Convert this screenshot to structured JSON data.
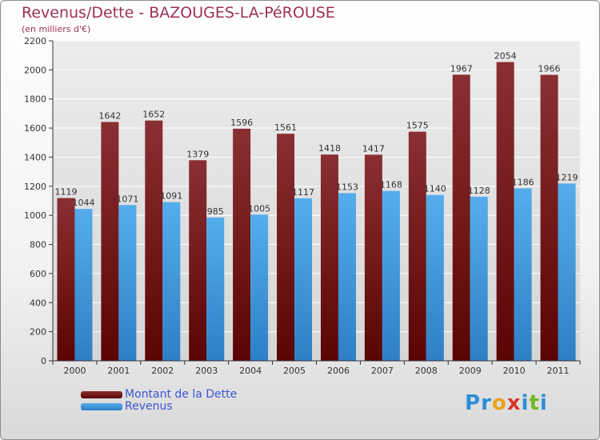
{
  "title": "Revenus/Dette - BAZOUGES-LA-PéROUSE",
  "subtitle": "(en milliers d'€)",
  "logo": [
    "P",
    "r",
    "o",
    "x",
    "i",
    "t",
    "i"
  ],
  "colors": {
    "dette": "#7b1818",
    "revenus": "#3d9ee6",
    "title": "#9c2f56",
    "legend_text": "#3a55d8",
    "logo": [
      "#2e8fd6",
      "#2e8fd6",
      "#e8a317",
      "#d8342a",
      "#2e8fd6",
      "#72b826",
      "#2e8fd6"
    ]
  },
  "legend": [
    {
      "label": "Montant de la Dette"
    },
    {
      "label": "Revenus"
    }
  ],
  "chart_data": {
    "type": "bar",
    "title": "Revenus/Dette - BAZOUGES-LA-PéROUSE",
    "subtitle": "(en milliers d'€)",
    "categories": [
      "2000",
      "2001",
      "2002",
      "2003",
      "2004",
      "2005",
      "2006",
      "2007",
      "2008",
      "2009",
      "2010",
      "2011"
    ],
    "series": [
      {
        "name": "Montant de la Dette",
        "values": [
          1119,
          1642,
          1652,
          1379,
          1596,
          1561,
          1418,
          1417,
          1575,
          1967,
          2054,
          1966
        ]
      },
      {
        "name": "Revenus",
        "values": [
          1044,
          1071,
          1091,
          985,
          1005,
          1117,
          1153,
          1168,
          1140,
          1128,
          1186,
          1219
        ]
      }
    ],
    "ylim": [
      0,
      2200
    ],
    "yticks": [
      0,
      200,
      400,
      600,
      800,
      1000,
      1200,
      1400,
      1600,
      1800,
      2000,
      2200
    ],
    "grid": true,
    "legend_position": "bottom-left"
  }
}
